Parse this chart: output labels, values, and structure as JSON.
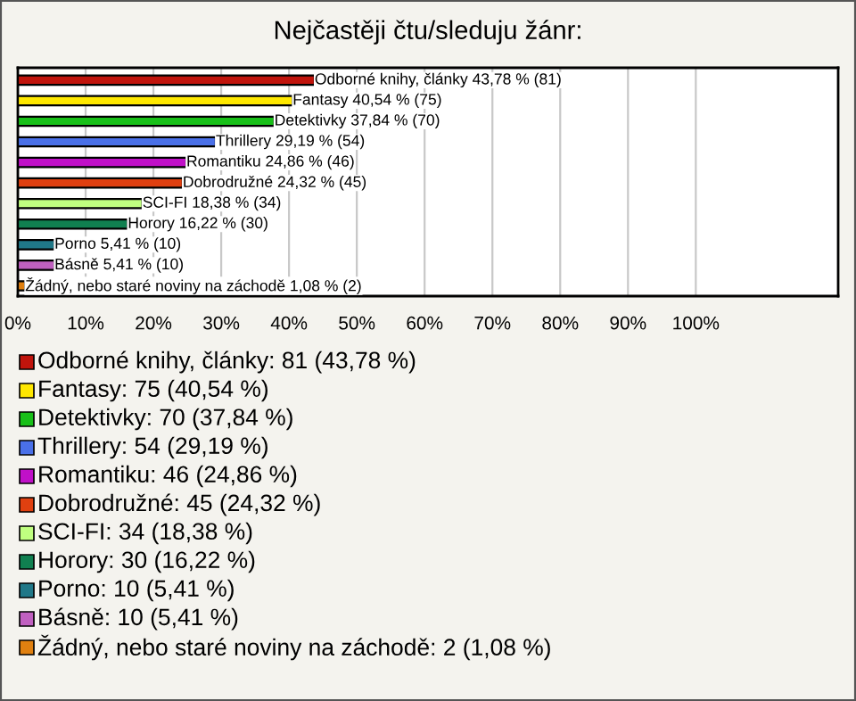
{
  "chart_data": {
    "type": "bar",
    "orientation": "horizontal",
    "title": "Nejčastěji čtu/sleduju žánr:",
    "categories": [
      "Odborné knihy, články",
      "Fantasy",
      "Detektivky",
      "Thrillery",
      "Romantiku",
      "Dobrodružné",
      "SCI-FI",
      "Horory",
      "Porno",
      "Básně",
      "Žádný, nebo staré noviny na záchodě"
    ],
    "values": [
      43.78,
      40.54,
      37.84,
      29.19,
      24.86,
      24.32,
      18.38,
      16.22,
      5.41,
      5.41,
      1.08
    ],
    "value_labels": [
      "43,78 % (81)",
      "40,54 % (75)",
      "37,84 % (70)",
      "29,19 % (54)",
      "24,86 % (46)",
      "24,32 % (45)",
      "18,38 % (34)",
      "16,22 % (30)",
      "5,41 % (10)",
      "5,41 % (10)",
      "1,08 % (2)"
    ],
    "colors": [
      "#c0140c",
      "#ffe800",
      "#18c018",
      "#4a70e8",
      "#c010c8",
      "#e04010",
      "#c0ff80",
      "#108050",
      "#207888",
      "#c060c0",
      "#e08010"
    ],
    "xlim": [
      0,
      121
    ],
    "xticks": [
      {
        "value": 0,
        "label": "0%"
      },
      {
        "value": 10,
        "label": "10%"
      },
      {
        "value": 20,
        "label": "20%"
      },
      {
        "value": 30,
        "label": "30%"
      },
      {
        "value": 40,
        "label": "40%"
      },
      {
        "value": 50,
        "label": "50%"
      },
      {
        "value": 60,
        "label": "60%"
      },
      {
        "value": 70,
        "label": "70%"
      },
      {
        "value": 80,
        "label": "80%"
      },
      {
        "value": 90,
        "label": "90%"
      },
      {
        "value": 100,
        "label": "100%"
      }
    ],
    "grid": "x",
    "tick_labels": "x",
    "annotations": [
      "Odborné knihy, články: 81 (43,78 %)",
      "Fantasy: 75 (40,54 %)",
      "Detektivky: 70 (37,84 %)",
      "Thrillery: 54 (29,19 %)",
      "Romantiku: 46 (24,86 %)",
      "Dobrodružné: 45 (24,32 %)",
      "SCI-FI: 34 (18,38 %)",
      "Horory: 30 (16,22 %)",
      "Porno: 10 (5,41 %)",
      "Básně: 10 (5,41 %)",
      "Žádný, nebo staré noviny na záchodě: 2 (1,08 %)"
    ]
  }
}
